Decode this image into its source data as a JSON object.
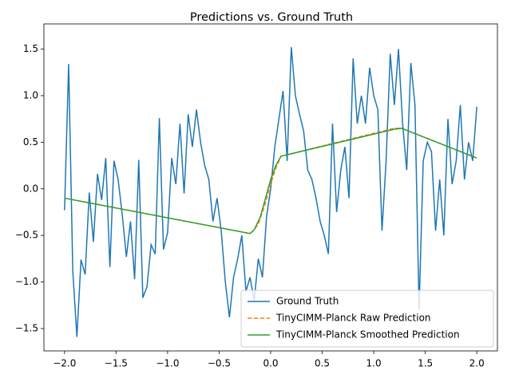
{
  "chart_data": {
    "type": "line",
    "title": "Predictions vs. Ground Truth",
    "xlim": [
      -2.2,
      2.2
    ],
    "ylim": [
      -1.74,
      1.77
    ],
    "xticks": [
      {
        "value": -2,
        "label": "−2.0"
      },
      {
        "value": -1.5,
        "label": "−1.5"
      },
      {
        "value": -1,
        "label": "−1.0"
      },
      {
        "value": -0.5,
        "label": "−0.5"
      },
      {
        "value": 0,
        "label": "0.0"
      },
      0.5,
      {
        "value": 1,
        "label": "1.0"
      },
      1.5,
      {
        "value": 2,
        "label": "2.0"
      }
    ],
    "yticks": [
      {
        "value": -1.5,
        "label": "−1.5"
      },
      {
        "value": -1,
        "label": "−1.0"
      },
      {
        "value": -0.5,
        "label": "−0.5"
      },
      {
        "value": 0,
        "label": "0.0"
      },
      0.5,
      {
        "value": 1,
        "label": "1.0"
      },
      1.5
    ],
    "legend": "lower right",
    "series": [
      {
        "name": "Ground Truth",
        "color": "#1f77b4",
        "linestyle": "solid",
        "x": [
          -2.0,
          -1.96,
          -1.92,
          -1.88,
          -1.84,
          -1.8,
          -1.76,
          -1.72,
          -1.68,
          -1.64,
          -1.6,
          -1.56,
          -1.52,
          -1.48,
          -1.44,
          -1.4,
          -1.36,
          -1.32,
          -1.28,
          -1.24,
          -1.2,
          -1.16,
          -1.12,
          -1.08,
          -1.04,
          -1.0,
          -0.96,
          -0.92,
          -0.88,
          -0.84,
          -0.8,
          -0.76,
          -0.72,
          -0.68,
          -0.64,
          -0.6,
          -0.56,
          -0.52,
          -0.48,
          -0.44,
          -0.4,
          -0.36,
          -0.32,
          -0.28,
          -0.24,
          -0.2,
          -0.16,
          -0.12,
          -0.08,
          -0.04,
          0.0,
          0.04,
          0.08,
          0.12,
          0.16,
          0.2,
          0.24,
          0.28,
          0.32,
          0.36,
          0.4,
          0.44,
          0.48,
          0.52,
          0.56,
          0.6,
          0.64,
          0.68,
          0.72,
          0.76,
          0.8,
          0.84,
          0.88,
          0.92,
          0.96,
          1.0,
          1.04,
          1.08,
          1.12,
          1.16,
          1.2,
          1.24,
          1.28,
          1.32,
          1.36,
          1.4,
          1.44,
          1.48,
          1.52,
          1.56,
          1.6,
          1.64,
          1.68,
          1.72,
          1.76,
          1.8,
          1.84,
          1.88,
          1.92,
          1.96,
          2.0
        ],
        "values": [
          -0.23,
          1.34,
          -0.88,
          -1.59,
          -0.76,
          -0.92,
          -0.04,
          -0.57,
          0.16,
          -0.12,
          0.33,
          -0.84,
          0.3,
          0.1,
          -0.28,
          -0.73,
          -0.35,
          -0.97,
          0.31,
          -1.17,
          -1.05,
          -0.6,
          -0.7,
          0.76,
          -0.65,
          -0.47,
          0.33,
          0.05,
          0.7,
          -0.05,
          0.8,
          0.45,
          0.85,
          0.5,
          0.25,
          0.1,
          -0.35,
          -0.1,
          -0.45,
          -1.0,
          -1.38,
          -0.95,
          -0.75,
          -0.5,
          -1.1,
          -0.95,
          -1.2,
          -0.75,
          -0.95,
          -0.3,
          0.0,
          0.45,
          0.75,
          1.05,
          0.3,
          1.52,
          1.0,
          0.8,
          0.62,
          0.2,
          0.1,
          -0.1,
          -0.35,
          -0.5,
          -0.7,
          0.7,
          -0.25,
          0.2,
          0.45,
          -0.1,
          1.4,
          0.7,
          1.0,
          0.7,
          1.3,
          1.0,
          0.85,
          -0.45,
          0.3,
          1.45,
          0.9,
          1.5,
          0.7,
          0.2,
          1.35,
          0.9,
          -1.3,
          0.3,
          0.5,
          0.4,
          -0.45,
          0.1,
          -0.5,
          0.75,
          0.05,
          0.3,
          0.9,
          0.1,
          0.5,
          0.3,
          0.88
        ]
      },
      {
        "name": "TinyCIMM-Planck Raw Prediction",
        "color": "#ff7f0e",
        "linestyle": "dashed",
        "x": [
          -2.0,
          -0.2,
          -0.17,
          -0.12,
          -0.05,
          0.0,
          0.05,
          0.1,
          1.2,
          1.27,
          2.0
        ],
        "values": [
          -0.1,
          -0.48,
          -0.45,
          -0.38,
          -0.15,
          0.05,
          0.22,
          0.35,
          0.65,
          0.65,
          0.33
        ]
      },
      {
        "name": "TinyCIMM-Planck Smoothed Prediction",
        "color": "#2ca02c",
        "linestyle": "solid",
        "x": [
          -2.0,
          -0.2,
          -0.16,
          -0.1,
          -0.05,
          0.0,
          0.05,
          0.1,
          1.2,
          1.27,
          2.0
        ],
        "values": [
          -0.1,
          -0.48,
          -0.44,
          -0.3,
          -0.1,
          0.1,
          0.25,
          0.35,
          0.64,
          0.65,
          0.33
        ]
      }
    ]
  }
}
